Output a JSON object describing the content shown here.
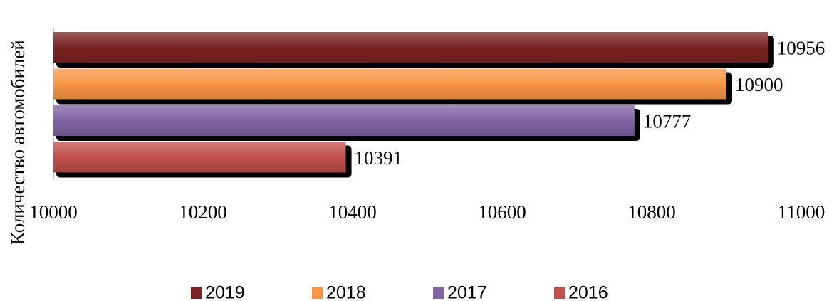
{
  "chart_data": {
    "type": "bar",
    "orientation": "horizontal",
    "y_axis_label": "Количество автомобилей",
    "series": [
      {
        "name": "2019",
        "color": "#7a2322",
        "values": [
          10956
        ]
      },
      {
        "name": "2018",
        "color": "#f79646",
        "values": [
          10900
        ]
      },
      {
        "name": "2017",
        "color": "#8064a2",
        "values": [
          10777
        ]
      },
      {
        "name": "2016",
        "color": "#c0504d",
        "values": [
          10391
        ]
      }
    ],
    "xlim": [
      10000,
      11000
    ],
    "xticks": [
      10000,
      10200,
      10400,
      10600,
      10800,
      11000
    ],
    "legend": "bottom"
  }
}
